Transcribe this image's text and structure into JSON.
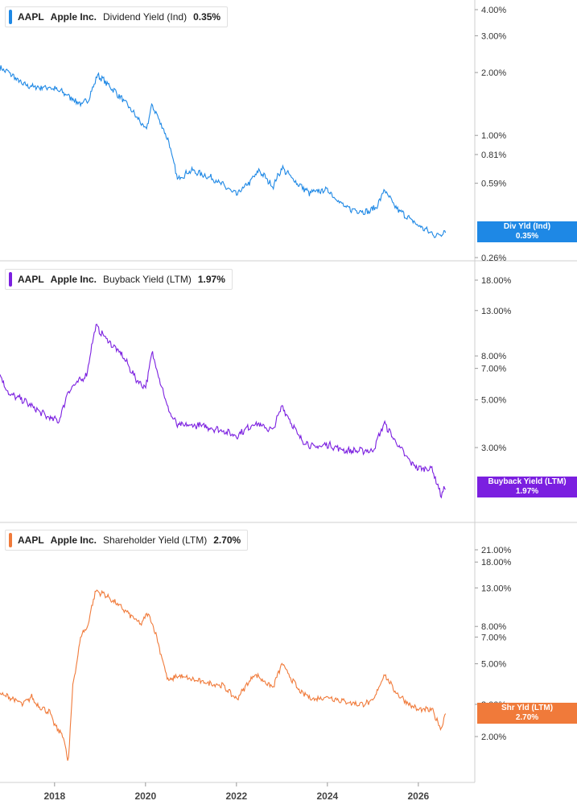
{
  "chart_data": [
    {
      "type": "line",
      "ticker": "AAPL",
      "company": "Apple Inc.",
      "metric": "Dividend Yield (Ind)",
      "current_value": "0.35%",
      "color": "#1e88e5",
      "tag": {
        "label": "Div Yld (Ind)",
        "value": "0.35%"
      },
      "y_scale": "log",
      "y_ticks": [
        "4.00%",
        "3.00%",
        "2.00%",
        "1.00%",
        "0.81%",
        "0.59%",
        "0.26%"
      ],
      "series": [
        {
          "x": [
            2016.8,
            2017.0,
            2017.3,
            2017.6,
            2017.9,
            2018.2,
            2018.6,
            2018.75,
            2018.95,
            2019.3,
            2019.6,
            2019.9,
            2020.0,
            2020.15,
            2020.5,
            2020.7,
            2021.0,
            2021.5,
            2022.0,
            2022.3,
            2022.5,
            2022.8,
            2023.0,
            2023.3,
            2023.6,
            2024.0,
            2024.4,
            2024.6,
            2024.9,
            2025.1,
            2025.25,
            2025.5,
            2025.8,
            2026.0,
            2026.4,
            2026.6
          ],
          "y": [
            2.1,
            2.0,
            1.75,
            1.7,
            1.7,
            1.6,
            1.4,
            1.5,
            1.95,
            1.65,
            1.4,
            1.15,
            1.05,
            1.4,
            0.95,
            0.62,
            0.68,
            0.62,
            0.52,
            0.6,
            0.68,
            0.57,
            0.7,
            0.6,
            0.53,
            0.55,
            0.45,
            0.44,
            0.43,
            0.46,
            0.55,
            0.45,
            0.4,
            0.37,
            0.33,
            0.35
          ]
        }
      ]
    },
    {
      "type": "line",
      "ticker": "AAPL",
      "company": "Apple Inc.",
      "metric": "Buyback Yield (LTM)",
      "current_value": "1.97%",
      "color": "#7b1fe0",
      "tag": {
        "label": "Buyback Yield (LTM)",
        "value": "1.97%"
      },
      "y_scale": "log",
      "y_ticks": [
        "18.00%",
        "13.00%",
        "8.00%",
        "7.00%",
        "5.00%",
        "3.00%"
      ],
      "series": [
        {
          "x": [
            2016.8,
            2017.0,
            2017.3,
            2017.6,
            2017.9,
            2018.1,
            2018.3,
            2018.5,
            2018.7,
            2018.9,
            2019.2,
            2019.5,
            2019.8,
            2020.0,
            2020.15,
            2020.5,
            2020.7,
            2021.2,
            2021.7,
            2022.0,
            2022.4,
            2022.8,
            2023.0,
            2023.4,
            2023.7,
            2024.0,
            2024.4,
            2024.7,
            2025.0,
            2025.25,
            2025.5,
            2025.8,
            2026.0,
            2026.3,
            2026.5,
            2026.6
          ],
          "y": [
            6.5,
            5.3,
            5.0,
            4.5,
            4.1,
            4.0,
            5.5,
            6.0,
            6.5,
            11.0,
            9.3,
            8.0,
            6.2,
            5.7,
            8.3,
            4.5,
            3.8,
            3.8,
            3.6,
            3.4,
            3.9,
            3.6,
            4.7,
            3.3,
            3.0,
            3.1,
            2.9,
            2.9,
            2.9,
            3.9,
            3.2,
            2.6,
            2.4,
            2.4,
            1.8,
            1.97
          ]
        }
      ]
    },
    {
      "type": "line",
      "ticker": "AAPL",
      "company": "Apple Inc.",
      "metric": "Shareholder Yield (LTM)",
      "current_value": "2.70%",
      "color": "#f07a3a",
      "tag": {
        "label": "Shr Yld (LTM)",
        "value": "2.70%"
      },
      "y_scale": "log",
      "y_ticks": [
        "21.00%",
        "18.00%",
        "13.00%",
        "8.00%",
        "7.00%",
        "5.00%",
        "3.00%",
        "2.00%"
      ],
      "series": [
        {
          "x": [
            2016.8,
            2017.0,
            2017.3,
            2017.5,
            2017.6,
            2017.9,
            2018.0,
            2018.2,
            2018.3,
            2018.4,
            2018.6,
            2018.7,
            2018.9,
            2019.1,
            2019.5,
            2019.9,
            2020.05,
            2020.2,
            2020.5,
            2020.7,
            2021.2,
            2021.7,
            2022.0,
            2022.4,
            2022.8,
            2023.0,
            2023.4,
            2023.7,
            2024.0,
            2024.4,
            2024.7,
            2025.0,
            2025.25,
            2025.5,
            2025.8,
            2026.0,
            2026.3,
            2026.5,
            2026.6
          ],
          "y": [
            3.4,
            3.3,
            3.0,
            3.3,
            3.0,
            2.7,
            2.3,
            2.0,
            1.4,
            3.8,
            7.5,
            7.6,
            12.5,
            12.0,
            10.0,
            8.2,
            9.5,
            7.7,
            4.0,
            4.3,
            4.0,
            3.8,
            3.2,
            4.4,
            3.7,
            5.0,
            3.5,
            3.2,
            3.3,
            3.1,
            3.0,
            3.1,
            4.4,
            3.5,
            3.0,
            2.8,
            2.8,
            2.2,
            2.7
          ]
        }
      ]
    }
  ],
  "x_axis": {
    "ticks": [
      "2018",
      "2020",
      "2022",
      "2024",
      "2026"
    ],
    "tick_values": [
      2018,
      2020,
      2022,
      2024,
      2026
    ],
    "range": [
      2016.8,
      2027.1
    ]
  }
}
